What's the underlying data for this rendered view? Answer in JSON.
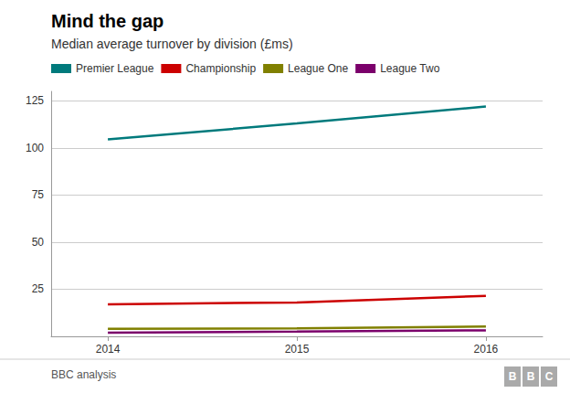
{
  "chart_data": {
    "type": "line",
    "title": "Mind the gap",
    "subtitle": "Median average turnover by division (£ms)",
    "footer": "BBC analysis",
    "logo": [
      "B",
      "B",
      "C"
    ],
    "x": [
      2014,
      2015,
      2016
    ],
    "series": [
      {
        "name": "Premier League",
        "color": "#007A7C",
        "values": [
          104.5,
          113.0,
          122.0
        ]
      },
      {
        "name": "Championship",
        "color": "#CC0000",
        "values": [
          17.0,
          18.0,
          21.5
        ]
      },
      {
        "name": "League One",
        "color": "#808000",
        "values": [
          4.0,
          4.2,
          5.2
        ]
      },
      {
        "name": "League Two",
        "color": "#7B006B",
        "values": [
          2.0,
          2.5,
          3.2
        ]
      }
    ],
    "xlim": [
      2013.7,
      2016.3
    ],
    "xticks": [
      2014,
      2015,
      2016
    ],
    "ylim": [
      0,
      130
    ],
    "yticks": [
      {
        "value": 0,
        "label": ""
      },
      25,
      50,
      75,
      100,
      125
    ],
    "grid": true,
    "legend": "upper left"
  }
}
